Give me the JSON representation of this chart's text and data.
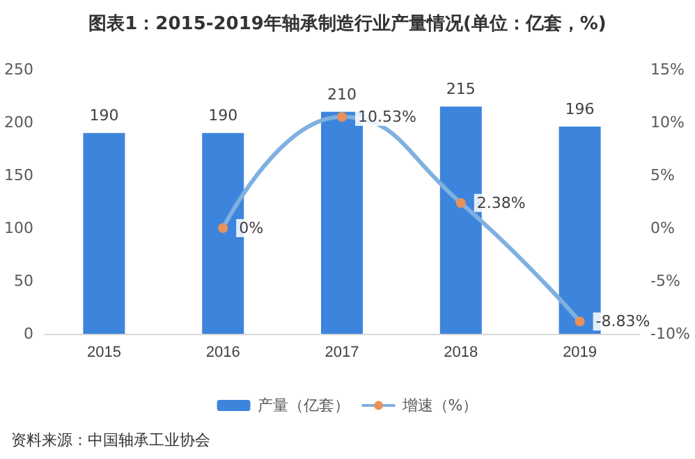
{
  "chart_data": {
    "type": "bar",
    "title": "图表1：2015-2019年轴承制造行业产量情况(单位：亿套，%)",
    "categories": [
      "2015",
      "2016",
      "2017",
      "2018",
      "2019"
    ],
    "series": [
      {
        "name": "产量（亿套）",
        "color": "#3d85dc",
        "values": [
          190,
          190,
          210,
          215,
          196
        ],
        "value_labels": [
          "190",
          "190",
          "210",
          "215",
          "196"
        ]
      },
      {
        "name": "增速（%）",
        "type": "line",
        "axis": "y2",
        "color": "#7fb0e0",
        "marker": "circle",
        "values": [
          null,
          0,
          10.53,
          2.38,
          -8.83
        ],
        "value_labels": [
          null,
          "0%",
          "10.53%",
          "2.38%",
          "-8.83%"
        ]
      }
    ],
    "ylim": [
      0,
      250
    ],
    "yticks": [
      0,
      50,
      100,
      150,
      200,
      250
    ],
    "y2lim": [
      -10,
      15
    ],
    "y2ticks": [
      {
        "value": -10,
        "label": "-10%"
      },
      {
        "value": -5,
        "label": "-5%"
      },
      {
        "value": 0,
        "label": "0%"
      },
      {
        "value": 5,
        "label": "5%"
      },
      {
        "value": 10,
        "label": "10%"
      },
      {
        "value": 15,
        "label": "15%"
      }
    ],
    "grid": false,
    "legend": "bottom",
    "annotations": [
      "资料来源：中国轴承工业协会"
    ]
  }
}
